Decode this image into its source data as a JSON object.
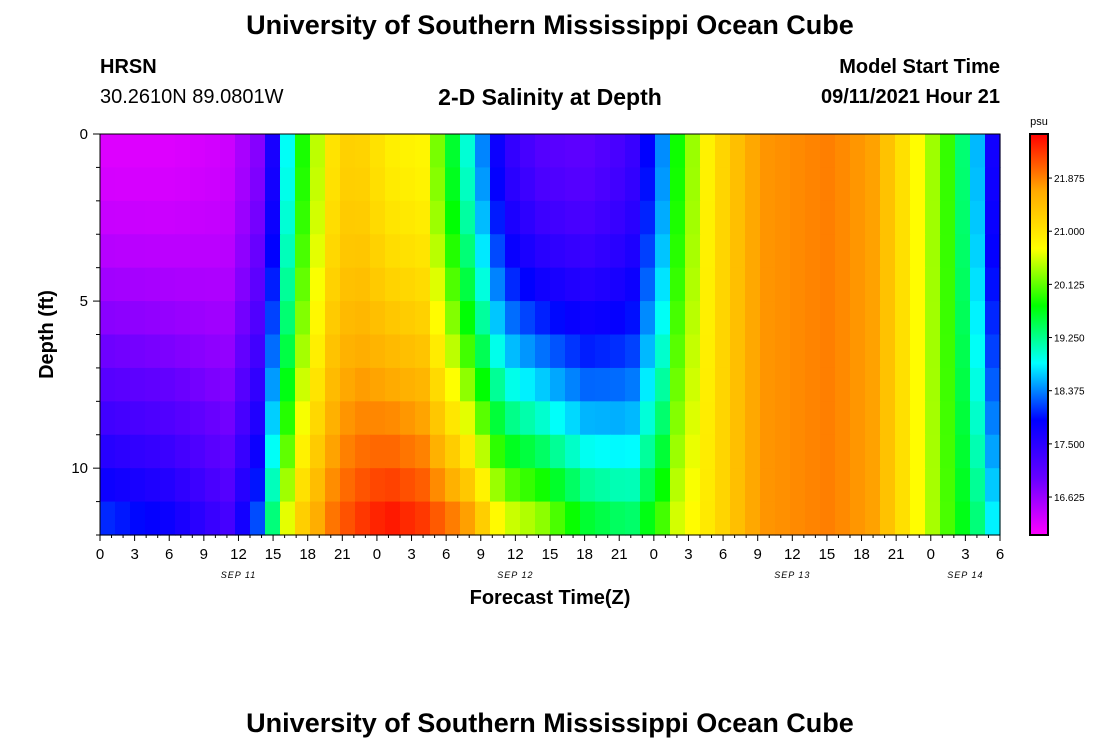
{
  "header": {
    "title": "University of Southern Mississippi Ocean Cube",
    "station": "HRSN",
    "coordinates": "30.2610N  89.0801W",
    "plot_title": "2-D Salinity at Depth",
    "model_start_label": "Model Start Time",
    "model_start_value": "09/11/2021 Hour 21"
  },
  "footer": {
    "title": "University of Southern Mississippi Ocean Cube"
  },
  "chart_data": {
    "type": "heatmap",
    "title": "2-D Salinity at Depth",
    "xlabel": "Forecast Time(Z)",
    "ylabel": "Depth (ft)",
    "x_hours_range": [
      0,
      78
    ],
    "ylim": [
      0,
      12
    ],
    "y_inverted": true,
    "x_tick_labels": [
      "0",
      "3",
      "6",
      "9",
      "12",
      "15",
      "18",
      "21",
      "0",
      "3",
      "6",
      "9",
      "12",
      "15",
      "18",
      "21",
      "0",
      "3",
      "6",
      "9",
      "12",
      "15",
      "18",
      "21",
      "0",
      "3",
      "6"
    ],
    "date_labels": [
      {
        "label": "SEP 11",
        "hour": 12
      },
      {
        "label": "SEP 12",
        "hour": 36
      },
      {
        "label": "SEP 13",
        "hour": 60
      },
      {
        "label": "SEP 14",
        "hour": 75
      }
    ],
    "y_tick_labels": [
      {
        "label": "0",
        "value": 0
      },
      {
        "label": "5",
        "value": 5
      },
      {
        "label": "10",
        "value": 10
      }
    ],
    "colorbar": {
      "unit": "psu",
      "min": 16.0,
      "max": 22.6,
      "tick_labels": [
        {
          "label": "21.875",
          "value": 21.875
        },
        {
          "label": "21.000",
          "value": 21.0
        },
        {
          "label": "20.125",
          "value": 20.125
        },
        {
          "label": "19.250",
          "value": 19.25
        },
        {
          "label": "18.375",
          "value": 18.375
        },
        {
          "label": "17.500",
          "value": 17.5
        },
        {
          "label": "16.625",
          "value": 16.625
        }
      ],
      "stops": [
        "#ff00ff",
        "#6600ff",
        "#0000ff",
        "#00ffff",
        "#00ff00",
        "#ffff00",
        "#ffaa00",
        "#ff0000"
      ]
    },
    "salinity_profiles": [
      {
        "hour": 0,
        "top": 16.2,
        "bottom": 18.2
      },
      {
        "hour": 6,
        "top": 16.2,
        "bottom": 17.9
      },
      {
        "hour": 11,
        "top": 16.3,
        "bottom": 17.3
      },
      {
        "hour": 14,
        "top": 16.8,
        "bottom": 18.4
      },
      {
        "hour": 16,
        "top": 18.6,
        "bottom": 20.6
      },
      {
        "hour": 17,
        "top": 19.6,
        "bottom": 21.2
      },
      {
        "hour": 20,
        "top": 21.0,
        "bottom": 22.0
      },
      {
        "hour": 22,
        "top": 21.3,
        "bottom": 22.3
      },
      {
        "hour": 25,
        "top": 20.9,
        "bottom": 22.6
      },
      {
        "hour": 28,
        "top": 20.8,
        "bottom": 22.4
      },
      {
        "hour": 32,
        "top": 18.9,
        "bottom": 21.9
      },
      {
        "hour": 35,
        "top": 17.5,
        "bottom": 20.8
      },
      {
        "hour": 38,
        "top": 17.1,
        "bottom": 20.6
      },
      {
        "hour": 42,
        "top": 17.0,
        "bottom": 19.8
      },
      {
        "hour": 46,
        "top": 17.3,
        "bottom": 19.5
      },
      {
        "hour": 49,
        "top": 18.5,
        "bottom": 20.2
      },
      {
        "hour": 50,
        "top": 19.8,
        "bottom": 20.6
      },
      {
        "hour": 53,
        "top": 21.0,
        "bottom": 21.0
      },
      {
        "hour": 57,
        "top": 21.75,
        "bottom": 21.75
      },
      {
        "hour": 63,
        "top": 21.9,
        "bottom": 21.9
      },
      {
        "hour": 67,
        "top": 21.7,
        "bottom": 21.7
      },
      {
        "hour": 71,
        "top": 20.7,
        "bottom": 20.7
      },
      {
        "hour": 74,
        "top": 19.8,
        "bottom": 19.9
      },
      {
        "hour": 76,
        "top": 18.6,
        "bottom": 19.4
      },
      {
        "hour": 78,
        "top": 17.3,
        "bottom": 18.6
      }
    ]
  }
}
